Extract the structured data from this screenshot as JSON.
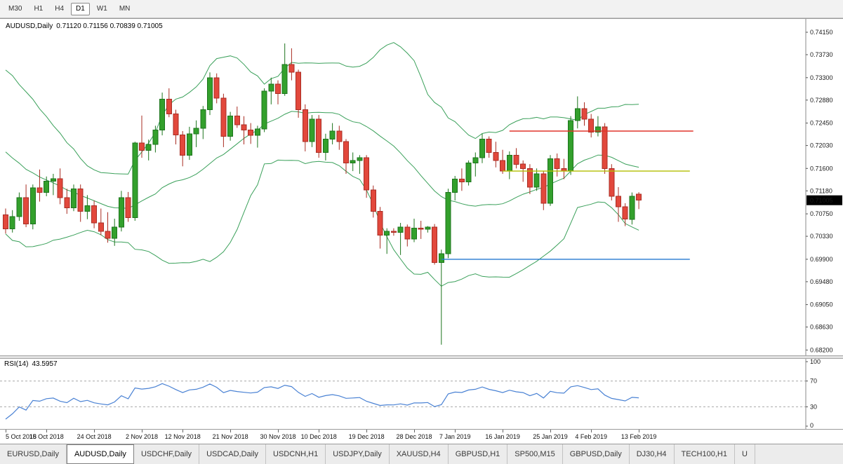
{
  "toolbar": {
    "timeframes": [
      {
        "label": "M30",
        "active": false
      },
      {
        "label": "H1",
        "active": false
      },
      {
        "label": "H4",
        "active": false
      },
      {
        "label": "D1",
        "active": true
      },
      {
        "label": "W1",
        "active": false
      },
      {
        "label": "MN",
        "active": false
      }
    ]
  },
  "chart": {
    "symbol_title": "AUDUSD,Daily",
    "ohlc_text": "0.71120 0.71156 0.70839 0.71005",
    "current_price": "0.71005",
    "price_axis_labels": [
      "0.74150",
      "0.73730",
      "0.73300",
      "0.72880",
      "0.72450",
      "0.72030",
      "0.71600",
      "0.71180",
      "0.70750",
      "0.70330",
      "0.69900",
      "0.69480",
      "0.69050",
      "0.68630",
      "0.68200"
    ]
  },
  "rsi": {
    "title": "RSI(14)",
    "value": "43.5957",
    "axis_labels": [
      "100",
      "70",
      "30",
      "0"
    ],
    "level_lines": [
      70,
      30
    ]
  },
  "colors": {
    "bull": "#33a02c",
    "bull_border": "#1c741c",
    "bear": "#e2483c",
    "bear_border": "#a92d23",
    "bollinger": "#3aa05a",
    "rsi_line": "#4a82d4",
    "level_dash": "#a8a8a8",
    "hline_red": "#e0352b",
    "hline_yellow": "#b3bd00",
    "hline_blue": "#2479d0",
    "axis_line": "#8a8a8a",
    "price_badge_bg": "#000000",
    "price_badge_fg": "#ffffff"
  },
  "chart_data": {
    "type": "candlestick",
    "symbol": "AUDUSD",
    "timeframe": "Daily",
    "title": "AUDUSD,Daily",
    "last_ohlc": {
      "open": 0.7112,
      "high": 0.71156,
      "low": 0.70839,
      "close": 0.71005
    },
    "price_range": {
      "min": 0.681,
      "max": 0.744
    },
    "indicators": {
      "bollinger": {
        "period": 20,
        "deviation": 2
      },
      "rsi": {
        "period": 14,
        "current": 43.5957
      }
    },
    "date_ticks": [
      {
        "index": 0,
        "label": "5 Oct 2018"
      },
      {
        "index": 6,
        "label": "15 Oct 2018"
      },
      {
        "index": 13,
        "label": "24 Oct 2018"
      },
      {
        "index": 20,
        "label": "2 Nov 2018"
      },
      {
        "index": 26,
        "label": "12 Nov 2018"
      },
      {
        "index": 33,
        "label": "21 Nov 2018"
      },
      {
        "index": 40,
        "label": "30 Nov 2018"
      },
      {
        "index": 46,
        "label": "10 Dec 2018"
      },
      {
        "index": 53,
        "label": "19 Dec 2018"
      },
      {
        "index": 60,
        "label": "28 Dec 2018"
      },
      {
        "index": 66,
        "label": "7 Jan 2019"
      },
      {
        "index": 73,
        "label": "16 Jan 2019"
      },
      {
        "index": 80,
        "label": "25 Jan 2019"
      },
      {
        "index": 86,
        "label": "4 Feb 2019"
      },
      {
        "index": 93,
        "label": "13 Feb 2019"
      }
    ],
    "warmup_closes": [
      0.731,
      0.7295,
      0.73,
      0.7285,
      0.726,
      0.727,
      0.7245,
      0.725,
      0.7225,
      0.723,
      0.72,
      0.721,
      0.7185,
      0.716,
      0.715,
      0.713,
      0.7105,
      0.711,
      0.7085,
      0.7075
    ],
    "candles": [
      [
        0.7073,
        0.7085,
        0.7038,
        0.7047
      ],
      [
        0.7047,
        0.7082,
        0.704,
        0.707
      ],
      [
        0.707,
        0.7115,
        0.7062,
        0.7105
      ],
      [
        0.7105,
        0.713,
        0.705,
        0.7056
      ],
      [
        0.7056,
        0.713,
        0.7046,
        0.7124
      ],
      [
        0.7124,
        0.7158,
        0.7098,
        0.7115
      ],
      [
        0.7115,
        0.7145,
        0.7108,
        0.7136
      ],
      [
        0.7136,
        0.715,
        0.711,
        0.7141
      ],
      [
        0.7141,
        0.716,
        0.7093,
        0.7105
      ],
      [
        0.7105,
        0.7122,
        0.7075,
        0.7086
      ],
      [
        0.7086,
        0.713,
        0.708,
        0.7122
      ],
      [
        0.7122,
        0.713,
        0.706,
        0.708
      ],
      [
        0.708,
        0.711,
        0.7065,
        0.709
      ],
      [
        0.709,
        0.71,
        0.7048,
        0.7058
      ],
      [
        0.7058,
        0.7085,
        0.7035,
        0.7042
      ],
      [
        0.7042,
        0.7078,
        0.7021,
        0.7029
      ],
      [
        0.7029,
        0.7066,
        0.7015,
        0.705
      ],
      [
        0.705,
        0.7118,
        0.7042,
        0.7105
      ],
      [
        0.7105,
        0.7116,
        0.706,
        0.7068
      ],
      [
        0.7068,
        0.721,
        0.7062,
        0.7208
      ],
      [
        0.7208,
        0.7259,
        0.718,
        0.7194
      ],
      [
        0.7194,
        0.7214,
        0.7175,
        0.7205
      ],
      [
        0.7205,
        0.724,
        0.719,
        0.7232
      ],
      [
        0.7232,
        0.7302,
        0.7222,
        0.729
      ],
      [
        0.729,
        0.731,
        0.7256,
        0.7262
      ],
      [
        0.7262,
        0.727,
        0.7205,
        0.7223
      ],
      [
        0.7223,
        0.723,
        0.7164,
        0.7185
      ],
      [
        0.7185,
        0.7238,
        0.7176,
        0.7225
      ],
      [
        0.7225,
        0.725,
        0.72,
        0.7235
      ],
      [
        0.7235,
        0.7277,
        0.7215,
        0.727
      ],
      [
        0.727,
        0.734,
        0.726,
        0.733
      ],
      [
        0.733,
        0.7338,
        0.7282,
        0.7292
      ],
      [
        0.7292,
        0.73,
        0.72,
        0.722
      ],
      [
        0.722,
        0.7266,
        0.7212,
        0.7258
      ],
      [
        0.7258,
        0.7276,
        0.7236,
        0.7242
      ],
      [
        0.7242,
        0.7258,
        0.7205,
        0.7232
      ],
      [
        0.7232,
        0.7245,
        0.7206,
        0.7222
      ],
      [
        0.7222,
        0.724,
        0.7199,
        0.7234
      ],
      [
        0.7234,
        0.731,
        0.7228,
        0.7305
      ],
      [
        0.7305,
        0.733,
        0.728,
        0.7318
      ],
      [
        0.7318,
        0.7325,
        0.728,
        0.73
      ],
      [
        0.73,
        0.7394,
        0.7296,
        0.7355
      ],
      [
        0.7355,
        0.7385,
        0.7325,
        0.734
      ],
      [
        0.734,
        0.7345,
        0.7255,
        0.727
      ],
      [
        0.727,
        0.728,
        0.7192,
        0.721
      ],
      [
        0.721,
        0.726,
        0.72,
        0.7252
      ],
      [
        0.7252,
        0.726,
        0.718,
        0.719
      ],
      [
        0.719,
        0.7225,
        0.7175,
        0.7215
      ],
      [
        0.7215,
        0.7245,
        0.7205,
        0.723
      ],
      [
        0.723,
        0.724,
        0.7195,
        0.721
      ],
      [
        0.721,
        0.7215,
        0.715,
        0.717
      ],
      [
        0.717,
        0.719,
        0.7155,
        0.7175
      ],
      [
        0.7175,
        0.7185,
        0.715,
        0.718
      ],
      [
        0.718,
        0.7185,
        0.7105,
        0.712
      ],
      [
        0.712,
        0.7128,
        0.7068,
        0.708
      ],
      [
        0.708,
        0.7088,
        0.701,
        0.7035
      ],
      [
        0.7035,
        0.7048,
        0.7,
        0.7042
      ],
      [
        0.7042,
        0.7048,
        0.7034,
        0.704
      ],
      [
        0.704,
        0.7058,
        0.6998,
        0.705
      ],
      [
        0.705,
        0.7055,
        0.7014,
        0.7028
      ],
      [
        0.7028,
        0.7066,
        0.7022,
        0.7048
      ],
      [
        0.7048,
        0.7062,
        0.7028,
        0.7046
      ],
      [
        0.7046,
        0.7052,
        0.704,
        0.705
      ],
      [
        0.705,
        0.7056,
        0.698,
        0.6984
      ],
      [
        0.6984,
        0.7008,
        0.683,
        0.7
      ],
      [
        0.7,
        0.7122,
        0.6992,
        0.7115
      ],
      [
        0.7115,
        0.7146,
        0.71,
        0.714
      ],
      [
        0.714,
        0.716,
        0.7118,
        0.7135
      ],
      [
        0.7135,
        0.7175,
        0.7128,
        0.717
      ],
      [
        0.717,
        0.719,
        0.7145,
        0.718
      ],
      [
        0.718,
        0.7225,
        0.717,
        0.7215
      ],
      [
        0.7215,
        0.722,
        0.718,
        0.719
      ],
      [
        0.719,
        0.721,
        0.7162,
        0.7175
      ],
      [
        0.7175,
        0.7195,
        0.715,
        0.7155
      ],
      [
        0.7155,
        0.7192,
        0.714,
        0.7185
      ],
      [
        0.7185,
        0.7198,
        0.716,
        0.7168
      ],
      [
        0.7168,
        0.7175,
        0.7135,
        0.716
      ],
      [
        0.716,
        0.7168,
        0.7112,
        0.7125
      ],
      [
        0.7125,
        0.716,
        0.7118,
        0.715
      ],
      [
        0.715,
        0.7155,
        0.7082,
        0.7095
      ],
      [
        0.7095,
        0.7185,
        0.709,
        0.7178
      ],
      [
        0.7178,
        0.7188,
        0.7145,
        0.716
      ],
      [
        0.716,
        0.7178,
        0.714,
        0.7155
      ],
      [
        0.7155,
        0.7258,
        0.7148,
        0.725
      ],
      [
        0.725,
        0.7295,
        0.7235,
        0.7272
      ],
      [
        0.7272,
        0.7284,
        0.724,
        0.7252
      ],
      [
        0.7252,
        0.7262,
        0.7218,
        0.7228
      ],
      [
        0.7228,
        0.7258,
        0.722,
        0.7238
      ],
      [
        0.7238,
        0.7245,
        0.715,
        0.716
      ],
      [
        0.716,
        0.7168,
        0.71,
        0.7108
      ],
      [
        0.7108,
        0.7125,
        0.706,
        0.7088
      ],
      [
        0.7088,
        0.7095,
        0.7052,
        0.7065
      ],
      [
        0.7065,
        0.7115,
        0.7055,
        0.7108
      ],
      [
        0.7112,
        0.71156,
        0.70839,
        0.71005
      ]
    ],
    "hlines": [
      {
        "price": 0.723,
        "from_index": 74,
        "to_index": 101,
        "color_key": "hline_red"
      },
      {
        "price": 0.7155,
        "from_index": 73,
        "to_index": 100.5,
        "color_key": "hline_yellow"
      },
      {
        "price": 0.699,
        "from_index": 64,
        "to_index": 100.5,
        "color_key": "hline_blue"
      }
    ]
  },
  "tabs": [
    {
      "label": "EURUSD,Daily",
      "active": false
    },
    {
      "label": "AUDUSD,Daily",
      "active": true
    },
    {
      "label": "USDCHF,Daily",
      "active": false
    },
    {
      "label": "USDCAD,Daily",
      "active": false
    },
    {
      "label": "USDCNH,H1",
      "active": false
    },
    {
      "label": "USDJPY,Daily",
      "active": false
    },
    {
      "label": "XAUUSD,H4",
      "active": false
    },
    {
      "label": "GBPUSD,H1",
      "active": false
    },
    {
      "label": "SP500,M15",
      "active": false
    },
    {
      "label": "GBPUSD,Daily",
      "active": false
    },
    {
      "label": "DJ30,H4",
      "active": false
    },
    {
      "label": "TECH100,H1",
      "active": false
    },
    {
      "label": "U",
      "active": false
    }
  ]
}
